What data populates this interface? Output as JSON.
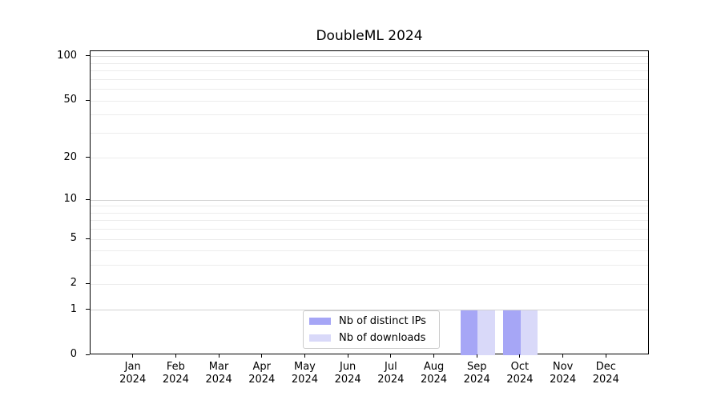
{
  "title": "DoubleML 2024",
  "chart_data": {
    "type": "bar",
    "title": "DoubleML 2024",
    "months": [
      "Jan",
      "Feb",
      "Mar",
      "Apr",
      "May",
      "Jun",
      "Jul",
      "Aug",
      "Sep",
      "Oct",
      "Nov",
      "Dec"
    ],
    "year": "2024",
    "series": [
      {
        "name": "Nb of distinct IPs",
        "color": "#a6a6f6",
        "values": [
          0,
          0,
          0,
          0,
          0,
          0,
          0,
          0,
          1,
          1,
          0,
          0
        ]
      },
      {
        "name": "Nb of downloads",
        "color": "#d9d9f9",
        "values": [
          0,
          0,
          0,
          0,
          0,
          0,
          0,
          0,
          1,
          1,
          0,
          0
        ]
      }
    ],
    "yscale": "log1p",
    "ylim": [
      0,
      109
    ],
    "yticks": [
      100,
      50,
      20,
      10,
      5,
      2,
      1,
      0
    ],
    "y_major_gridlines": [
      1,
      10,
      100
    ],
    "y_minor_gridlines": [
      2,
      3,
      4,
      5,
      6,
      7,
      8,
      9,
      20,
      30,
      40,
      50,
      60,
      70,
      80,
      90
    ],
    "grid": true,
    "legend": {
      "position": "lower center",
      "items": [
        {
          "label": "Nb of distinct IPs",
          "color": "#a6a6f6"
        },
        {
          "label": "Nb of downloads",
          "color": "#d9d9f9"
        }
      ]
    }
  },
  "colors": {
    "spine": "#000000",
    "major_grid": "#d2d2d2",
    "minor_grid": "#ececec",
    "background": "#ffffff"
  }
}
